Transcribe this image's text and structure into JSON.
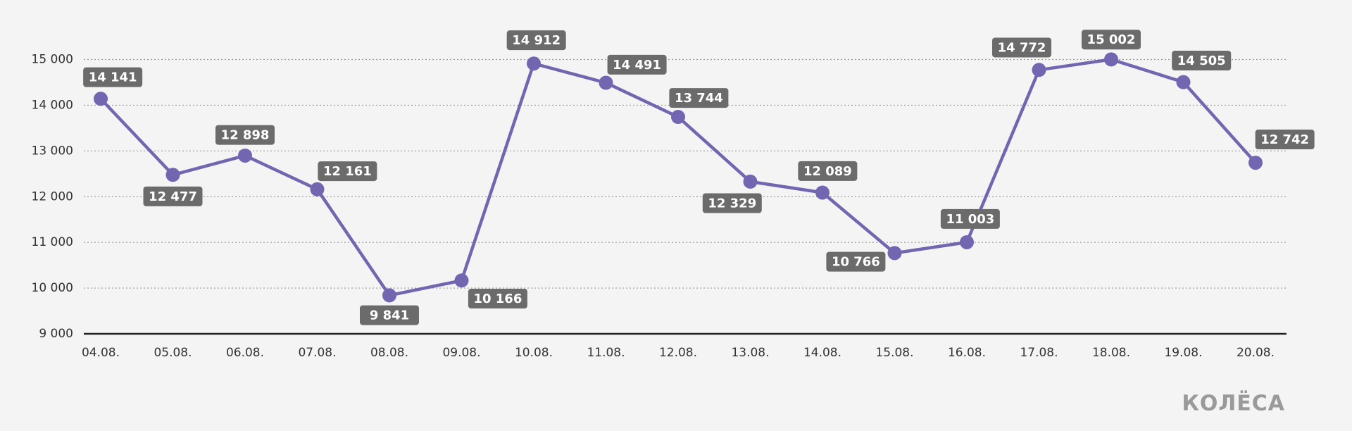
{
  "chart_data": {
    "type": "line",
    "categories": [
      "04.08.",
      "05.08.",
      "06.08.",
      "07.08.",
      "08.08.",
      "09.08.",
      "10.08.",
      "11.08.",
      "12.08.",
      "13.08.",
      "14.08.",
      "15.08.",
      "16.08.",
      "17.08.",
      "18.08.",
      "19.08.",
      "20.08."
    ],
    "series": [
      {
        "color": "#7266b0",
        "values": [
          14141,
          12477,
          12898,
          12161,
          9841,
          10166,
          14912,
          14491,
          13744,
          12329,
          12089,
          10766,
          11003,
          14772,
          15002,
          14505,
          12742
        ],
        "value_labels": [
          "14 141",
          "12 477",
          "12 898",
          "12 161",
          "9 841",
          "10 166",
          "14 912",
          "14 491",
          "13 744",
          "12 329",
          "12 089",
          "10 766",
          "11 003",
          "14 772",
          "15 002",
          "14 505",
          "12 742"
        ]
      }
    ],
    "ylim": [
      9000,
      15000
    ],
    "yticks": [
      {
        "value": 9000,
        "label": "9 000"
      },
      {
        "value": 10000,
        "label": "10 000"
      },
      {
        "value": 11000,
        "label": "11 000"
      },
      {
        "value": 12000,
        "label": "12 000"
      },
      {
        "value": 13000,
        "label": "13 000"
      },
      {
        "value": 14000,
        "label": "14 000"
      },
      {
        "value": 15000,
        "label": "15 000"
      }
    ],
    "grid": true
  },
  "logo": "КОЛЁСА"
}
